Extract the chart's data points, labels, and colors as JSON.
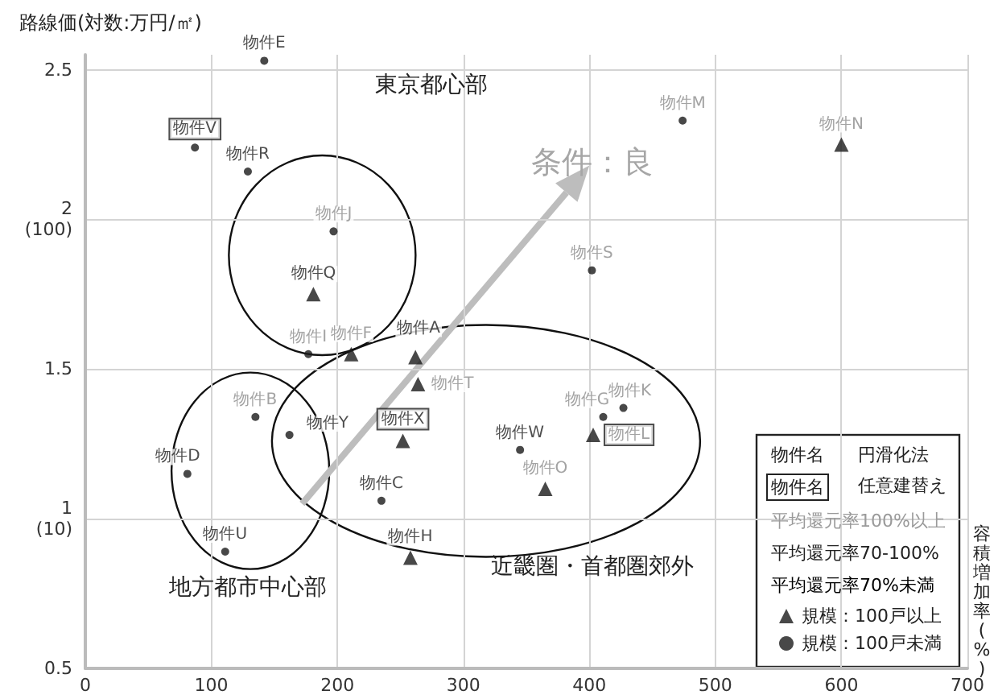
{
  "chart_data": {
    "type": "scatter",
    "xlabel": "容積増加率(%)",
    "ylabel": "路線価(対数:万円/㎡)",
    "xlim": [
      0,
      700
    ],
    "xticks": [
      0,
      100,
      200,
      300,
      400,
      500,
      600,
      700
    ],
    "ylim": [
      0.5,
      2.55
    ],
    "yticks": [
      0.5,
      {
        "value": 1,
        "label": "1\n(10)"
      },
      1.5,
      {
        "value": 2,
        "label": "2\n(100)"
      },
      2.5
    ],
    "grid": true,
    "legend": "bottom right",
    "series": [
      {
        "name": "規模：100戸以上",
        "color": "#1a1a1a",
        "marker": "triangle",
        "x": [
          181,
          211,
          262,
          264,
          252,
          258,
          403,
          365,
          600
        ],
        "values": [
          1.75,
          1.55,
          1.54,
          1.45,
          1.26,
          0.87,
          1.28,
          1.1,
          2.25
        ],
        "value_labels": [
          "物件Q",
          "物件F",
          "物件A",
          "物件T",
          "物件X",
          "物件H",
          "物件L",
          "物件O",
          "物件N"
        ]
      },
      {
        "name": "規模：100戸未満",
        "color": "#1a1a1a",
        "marker": "circle",
        "x": [
          142,
          87,
          129,
          197,
          474,
          402,
          177,
          135,
          162,
          81,
          235,
          111,
          411,
          427,
          345
        ],
        "values": [
          2.53,
          2.24,
          2.16,
          1.96,
          2.33,
          1.83,
          1.55,
          1.34,
          1.28,
          1.15,
          1.06,
          0.89,
          1.34,
          1.37,
          1.23
        ],
        "value_labels": [
          "物件E",
          "物件V",
          "物件R",
          "物件J",
          "物件M",
          "物件S",
          "物件I",
          "物件B",
          "物件Y",
          "物件D",
          "物件C",
          "物件U",
          "物件G",
          "物件K",
          "物件W"
        ]
      }
    ],
    "annotations": [
      "東京都心部",
      "地方都市中心部",
      "近畿圏・首都圏郊外",
      "条件：良",
      "物件名",
      "円滑化法",
      "物件名",
      "任意建替え",
      "平均還元率100%以上",
      "平均還元率70-100%",
      "平均還元率70%未満"
    ]
  }
}
